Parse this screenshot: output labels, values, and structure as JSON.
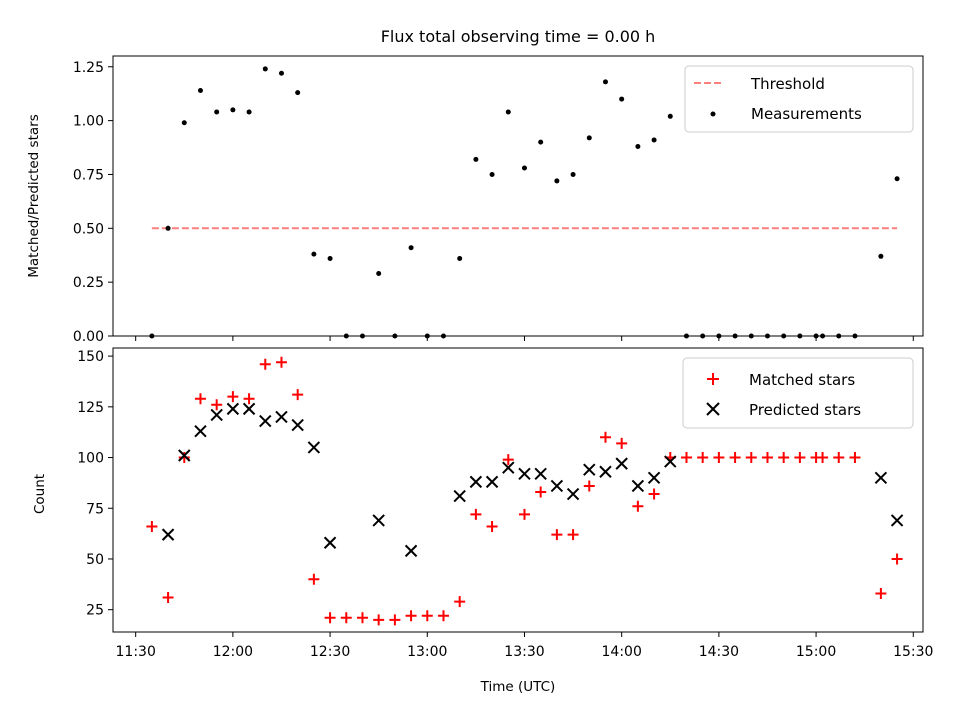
{
  "chart_data": {
    "title": "Flux total observing time = 0.00 h",
    "xlabel": "Time (UTC)",
    "x_ticks": [
      "11:30",
      "12:00",
      "12:30",
      "13:00",
      "13:30",
      "14:00",
      "14:30",
      "15:00",
      "15:30"
    ],
    "x_range": [
      "11:23",
      "15:33"
    ],
    "panels": [
      {
        "type": "scatter",
        "ylabel": "Matched/Predicted stars",
        "ylim": [
          0,
          1.3
        ],
        "y_ticks": [
          "0.00",
          "0.25",
          "0.50",
          "0.75",
          "1.00",
          "1.25"
        ],
        "legend_position": "top-right",
        "threshold": {
          "name": "Threshold",
          "value": 0.5,
          "x_start": "11:35",
          "x_end": "15:25",
          "color": "#ff7f7f",
          "style": "dashed"
        },
        "series": [
          {
            "name": "Measurements",
            "marker": "dot",
            "color": "#000000",
            "x": [
              "11:35",
              "11:40",
              "11:45",
              "11:50",
              "11:55",
              "12:00",
              "12:05",
              "12:10",
              "12:15",
              "12:20",
              "12:25",
              "12:30",
              "12:35",
              "12:40",
              "12:45",
              "12:50",
              "12:55",
              "13:00",
              "13:05",
              "13:10",
              "13:15",
              "13:20",
              "13:25",
              "13:30",
              "13:35",
              "13:40",
              "13:45",
              "13:50",
              "13:55",
              "14:00",
              "14:05",
              "14:10",
              "14:15",
              "14:20",
              "14:25",
              "14:30",
              "14:35",
              "14:40",
              "14:45",
              "14:50",
              "14:55",
              "15:00",
              "15:02",
              "15:07",
              "15:12",
              "15:20",
              "15:25"
            ],
            "y": [
              0.0,
              0.5,
              0.99,
              1.14,
              1.04,
              1.05,
              1.04,
              1.24,
              1.22,
              1.13,
              0.38,
              0.36,
              0.0,
              0.0,
              0.29,
              0.0,
              0.41,
              0.0,
              0.0,
              0.36,
              0.82,
              0.75,
              1.04,
              0.78,
              0.9,
              0.72,
              0.75,
              0.92,
              1.18,
              1.1,
              0.88,
              0.91,
              1.02,
              0.0,
              0.0,
              0.0,
              0.0,
              0.0,
              0.0,
              0.0,
              0.0,
              0.0,
              0.0,
              0.0,
              0.0,
              0.37,
              0.73
            ]
          }
        ]
      },
      {
        "type": "scatter",
        "ylabel": "Count",
        "ylim": [
          14,
          154
        ],
        "y_ticks": [
          "25",
          "50",
          "75",
          "100",
          "125",
          "150"
        ],
        "legend_position": "top-right",
        "series": [
          {
            "name": "Matched stars",
            "marker": "plus",
            "color": "#ff0000",
            "x": [
              "11:35",
              "11:40",
              "11:45",
              "11:50",
              "11:55",
              "12:00",
              "12:05",
              "12:10",
              "12:15",
              "12:20",
              "12:25",
              "12:30",
              "12:35",
              "12:40",
              "12:45",
              "12:50",
              "12:55",
              "13:00",
              "13:05",
              "13:10",
              "13:15",
              "13:20",
              "13:25",
              "13:30",
              "13:35",
              "13:40",
              "13:45",
              "13:50",
              "13:55",
              "14:00",
              "14:05",
              "14:10",
              "14:15",
              "14:20",
              "14:25",
              "14:30",
              "14:35",
              "14:40",
              "14:45",
              "14:50",
              "14:55",
              "15:00",
              "15:02",
              "15:07",
              "15:12",
              "15:20",
              "15:25"
            ],
            "y": [
              66,
              31,
              100,
              129,
              126,
              130,
              129,
              146,
              147,
              131,
              40,
              21,
              21,
              21,
              20,
              20,
              22,
              22,
              22,
              29,
              72,
              66,
              99,
              72,
              83,
              62,
              62,
              86,
              110,
              107,
              76,
              82,
              100,
              100,
              100,
              100,
              100,
              100,
              100,
              100,
              100,
              100,
              100,
              100,
              100,
              33,
              50
            ]
          },
          {
            "name": "Predicted stars",
            "marker": "cross",
            "color": "#000000",
            "x": [
              "11:40",
              "11:45",
              "11:50",
              "11:55",
              "12:00",
              "12:05",
              "12:10",
              "12:15",
              "12:20",
              "12:25",
              "12:30",
              "12:45",
              "12:55",
              "13:10",
              "13:15",
              "13:20",
              "13:25",
              "13:30",
              "13:35",
              "13:40",
              "13:45",
              "13:50",
              "13:55",
              "14:00",
              "14:05",
              "14:10",
              "14:15",
              "15:20",
              "15:25"
            ],
            "y": [
              62,
              101,
              113,
              121,
              124,
              124,
              118,
              120,
              116,
              105,
              58,
              69,
              54,
              81,
              88,
              88,
              95,
              92,
              92,
              86,
              82,
              94,
              93,
              97,
              86,
              90,
              98,
              90,
              69
            ]
          }
        ]
      }
    ]
  }
}
